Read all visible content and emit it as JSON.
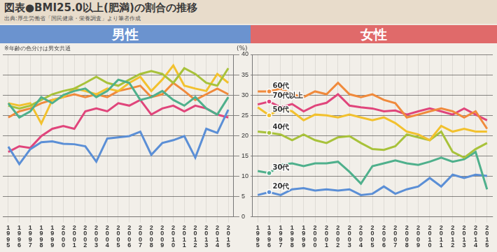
{
  "title": "図表●BMI25.0以上(肥満)の割合の推移",
  "source": "出典:厚生労働省「国民健康・栄養調査」より筆者作成",
  "note": "※年齢の色分けは男女共通",
  "chart_data": [
    {
      "type": "line",
      "title": "男性",
      "color": "#6b93cf",
      "ylabel": "(%)",
      "categories": [
        "1995",
        "1996",
        "1997",
        "1998",
        "1999",
        "2000",
        "2001",
        "2002",
        "2003",
        "2004",
        "2005",
        "2006",
        "2007",
        "2008",
        "2009",
        "2010",
        "2011",
        "2012",
        "2013",
        "2014",
        "2015"
      ],
      "ylim": [
        0,
        40
      ],
      "yticks": [
        0,
        5,
        10,
        15,
        20,
        25,
        30,
        35,
        40
      ],
      "grid": true,
      "series": [
        {
          "color": "#5b8fd6",
          "values": [
            17.3,
            13,
            16.7,
            18.4,
            18.6,
            18,
            17.9,
            17.4,
            13.6,
            19.3,
            19.6,
            19.9,
            21,
            15.3,
            18.2,
            18.9,
            19.9,
            14.6,
            21.7,
            20.7,
            26.4
          ]
        },
        {
          "color": "#4fb08c",
          "values": [
            28,
            24.5,
            26,
            29.5,
            28,
            30,
            31,
            31.6,
            29.5,
            31,
            33.8,
            33,
            28.8,
            29.5,
            31,
            28.8,
            27.4,
            29.5,
            26.7,
            25.2,
            29.5
          ]
        },
        {
          "color": "#a8c23a",
          "values": [
            27.4,
            26.7,
            27.4,
            28.8,
            30.2,
            31,
            31.6,
            33,
            34.5,
            33,
            32.3,
            33.8,
            35.2,
            35.9,
            35.2,
            33,
            36.6,
            35.2,
            33,
            32.3,
            36.6
          ]
        },
        {
          "color": "#f2c12e",
          "values": [
            28,
            27.4,
            28,
            23,
            28.8,
            29.5,
            31.6,
            31,
            30.2,
            31.6,
            31,
            33,
            34.5,
            31,
            33.8,
            37.3,
            32.3,
            31.6,
            31,
            35.2,
            33
          ]
        },
        {
          "color": "#f08a3c",
          "values": [
            24.5,
            26,
            26.7,
            28,
            28.8,
            29.5,
            30.2,
            29.5,
            30.2,
            29.5,
            31,
            31.6,
            32.3,
            29.5,
            30.2,
            33,
            31,
            28.8,
            30.2,
            31.6,
            30.2
          ]
        },
        {
          "color": "#e0457b",
          "values": [
            16,
            17.4,
            17,
            19.9,
            21.7,
            22.4,
            21.7,
            26,
            26.7,
            26,
            28,
            27.4,
            28.8,
            25.2,
            26.7,
            27.4,
            26,
            27.4,
            26.7,
            25.2,
            24.5
          ]
        }
      ]
    },
    {
      "type": "line",
      "title": "女性",
      "color": "#e06a6a",
      "tick_labels": "x",
      "categories": [
        "1995",
        "1996",
        "1997",
        "1998",
        "1999",
        "2000",
        "2001",
        "2002",
        "2003",
        "2004",
        "2005",
        "2006",
        "2007",
        "2008",
        "2009",
        "2010",
        "2011",
        "2012",
        "2013",
        "2014",
        "2015"
      ],
      "ylim": [
        0,
        40
      ],
      "yticks": [
        0,
        5,
        10,
        15,
        20,
        25,
        30,
        35,
        40
      ],
      "grid": true,
      "series": [
        {
          "name": "60代",
          "color": "#f08a3c",
          "values": [
            30.9,
            30.9,
            31.6,
            30.2,
            29.5,
            30.9,
            30.2,
            33,
            30.2,
            29.5,
            30.2,
            28.8,
            28,
            24.5,
            25.2,
            26,
            26.7,
            26,
            24.5,
            26,
            21.7
          ]
        },
        {
          "name": "70代以上",
          "color": "#e0457b",
          "values": [
            27.7,
            28.4,
            27,
            27.8,
            26,
            27.4,
            28.1,
            30.2,
            27.4,
            27,
            26.7,
            26,
            26.2,
            25.2,
            26,
            26.7,
            26,
            25.2,
            26.7,
            25.2,
            23.8
          ]
        },
        {
          "name": "50代",
          "color": "#f2c12e",
          "values": [
            27,
            25,
            26.7,
            26,
            23.8,
            25.2,
            25,
            24.5,
            25.2,
            24.5,
            23.8,
            24.5,
            23.1,
            21,
            20.3,
            18.9,
            22.4,
            21,
            21.7,
            21,
            21
          ]
        },
        {
          "name": "40代",
          "color": "#a8c23a",
          "values": [
            21,
            20.7,
            20.3,
            18.9,
            20.3,
            18.9,
            18.2,
            19.6,
            19.9,
            18.2,
            16.7,
            16.5,
            17.4,
            20.3,
            19.6,
            18.9,
            21,
            16,
            14.6,
            16.7,
            18.2
          ]
        },
        {
          "name": "30代",
          "color": "#4fb08c",
          "values": [
            11.3,
            10.8,
            12.8,
            13.2,
            12.5,
            13.2,
            13.2,
            13.6,
            11.1,
            8.2,
            12.5,
            13.2,
            13.9,
            13.2,
            12.8,
            13.6,
            14.6,
            13.6,
            14.2,
            16,
            6.8
          ]
        },
        {
          "name": "20代",
          "color": "#5b8fd6",
          "values": [
            5.4,
            6.1,
            5.4,
            6.8,
            7.1,
            6.5,
            6.8,
            6.5,
            6.8,
            5.4,
            5.7,
            7.5,
            5.7,
            6.8,
            7.5,
            9.6,
            7.5,
            10.4,
            9.6,
            10.4,
            10.1
          ]
        }
      ]
    }
  ]
}
